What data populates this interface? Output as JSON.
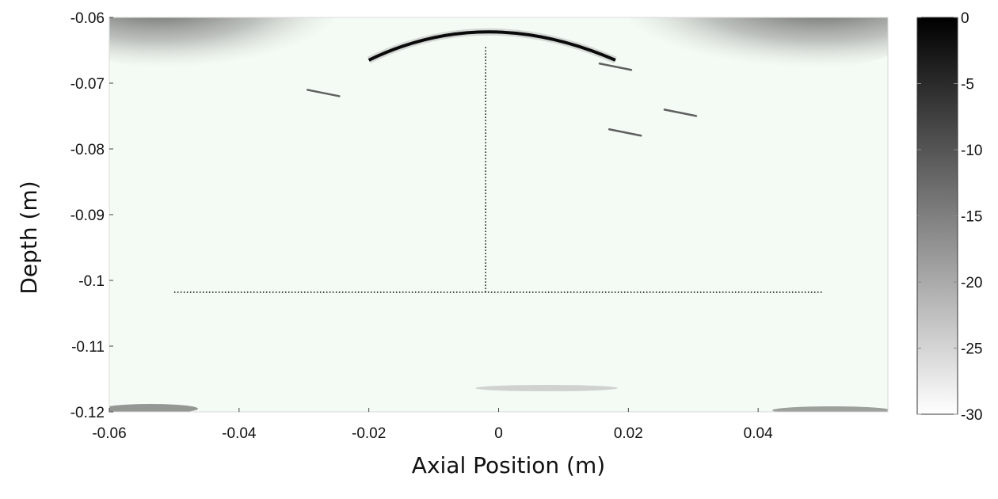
{
  "chart_data": {
    "type": "heatmap",
    "title": "",
    "xlabel": "Axial Position (m)",
    "ylabel": "Depth (m)",
    "xlim": [
      -0.06,
      0.06
    ],
    "ylim": [
      -0.12,
      -0.06
    ],
    "x_ticks": [
      -0.06,
      -0.04,
      -0.02,
      0,
      0.02,
      0.04
    ],
    "x_tick_labels": [
      "-0.06",
      "-0.04",
      "-0.02",
      "0",
      "0.02",
      "0.04"
    ],
    "y_ticks": [
      -0.06,
      -0.07,
      -0.08,
      -0.09,
      -0.1,
      -0.11,
      -0.12
    ],
    "y_tick_labels": [
      "-0.06",
      "-0.07",
      "-0.08",
      "-0.09",
      "-0.1",
      "-0.11",
      "-0.12"
    ],
    "colormap": "gray",
    "colorbar": {
      "range": [
        -30,
        0
      ],
      "ticks": [
        0,
        -5,
        -10,
        -15,
        -20,
        -25,
        -30
      ],
      "tick_labels": [
        "0",
        "-5",
        "-10",
        "-15",
        "-20",
        "-25",
        "-30"
      ]
    },
    "background_color": "#f4fbf4",
    "features": {
      "arc": {
        "x_start": -0.02,
        "x_end": 0.018,
        "apex_x": -0.002,
        "apex_y": -0.0622,
        "end_y": -0.0665
      },
      "vertical_dotted_line": {
        "x": -0.002,
        "y_start": -0.0645,
        "y_end": -0.1018
      },
      "horizontal_dotted_line": {
        "y": -0.1018,
        "x_start": -0.05,
        "x_end": 0.05
      },
      "small_reflectors": [
        {
          "x": -0.027,
          "y": -0.0715
        },
        {
          "x": 0.0195,
          "y": -0.0775
        },
        {
          "x": 0.028,
          "y": -0.0745
        },
        {
          "x": 0.018,
          "y": -0.0675
        }
      ]
    }
  }
}
